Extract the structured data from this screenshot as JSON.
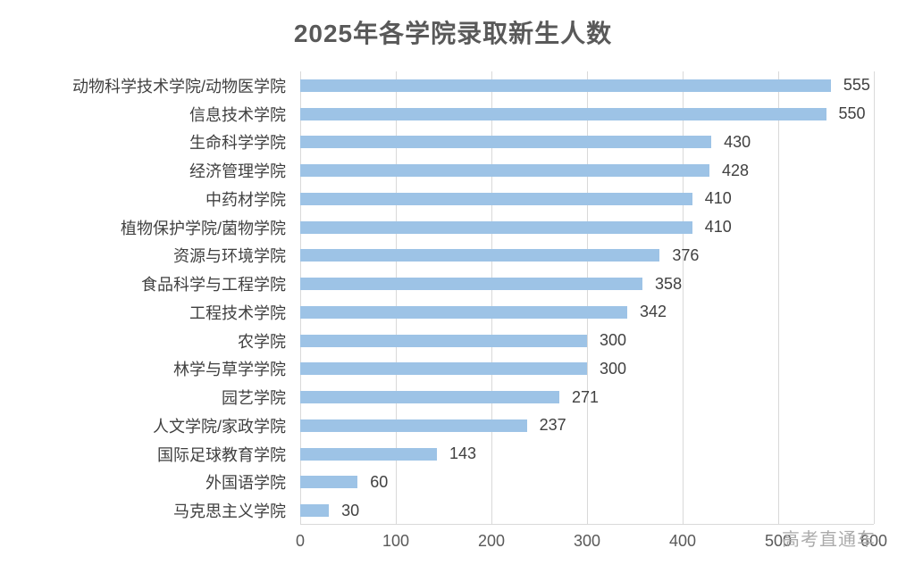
{
  "title": "2025年各学院录取新生人数",
  "watermark": "高考直通车",
  "colors": {
    "bar": "#9DC3E6",
    "gridline": "#D9D9D9",
    "axis_line": "#D9D9D9",
    "title_text": "#595959",
    "label_text": "#404040",
    "tick_text": "#595959",
    "watermark_text": "#ABABAB"
  },
  "chart_data": {
    "type": "bar",
    "orientation": "horizontal",
    "title": "2025年各学院录取新生人数",
    "categories": [
      "动物科学技术学院/动物医学院",
      "信息技术学院",
      "生命科学学院",
      "经济管理学院",
      "中药材学院",
      "植物保护学院/菌物学院",
      "资源与环境学院",
      "食品科学与工程学院",
      "工程技术学院",
      "农学院",
      "林学与草学学院",
      "园艺学院",
      "人文学院/家政学院",
      "国际足球教育学院",
      "外国语学院",
      "马克思主义学院"
    ],
    "values": [
      555,
      550,
      430,
      428,
      410,
      410,
      376,
      358,
      342,
      300,
      300,
      271,
      237,
      143,
      60,
      30
    ],
    "value_labels": true,
    "xlabel": "",
    "ylabel": "",
    "xlim": [
      0,
      600
    ],
    "xticks": [
      "0",
      "100",
      "200",
      "300",
      "400",
      "500",
      "600"
    ],
    "grid": true,
    "legend": false
  }
}
